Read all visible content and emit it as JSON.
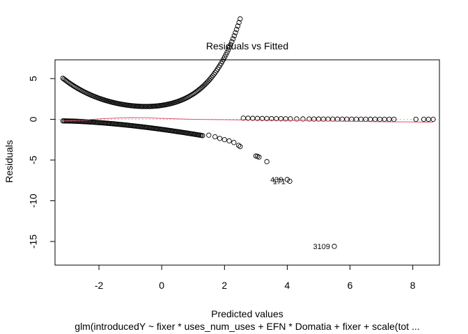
{
  "chart_data": {
    "type": "scatter",
    "title": "Residuals vs Fitted",
    "xlabel": "Predicted values",
    "ylabel": "Residuals",
    "subtitle": "glm(introducedY ~ fixer * uses_num_uses + EFN * Domatia + fixer + scale(tot ...",
    "xlim": [
      -3.4,
      8.85
    ],
    "ylim": [
      -17.9,
      7.3
    ],
    "x_ticks": [
      -2,
      0,
      2,
      4,
      6,
      8
    ],
    "y_ticks": [
      5,
      0,
      -5,
      -10,
      -15
    ],
    "reference_line_y": 0,
    "colors": {
      "points": "#000000",
      "smooth": "#DF536B",
      "reference": "#bbbbbb"
    },
    "upper_branch": {
      "x_start": -3.15,
      "x_end": 2.5,
      "dense_count": 150,
      "sparse_x": [
        2.6,
        2.75,
        2.9,
        3.05,
        3.2,
        3.35,
        3.5,
        3.65,
        3.8,
        3.95,
        4.1,
        4.3,
        4.5,
        4.7,
        4.85,
        5.0,
        5.15,
        5.3,
        5.45,
        5.6,
        5.75,
        5.9,
        6.05,
        6.2,
        6.35,
        6.5,
        6.65,
        6.8,
        6.95,
        7.1,
        7.25,
        7.4,
        8.1,
        8.35,
        8.5,
        8.65
      ]
    },
    "lower_branch": {
      "x_start": -3.15,
      "x_end": 1.3,
      "dense_count": 120,
      "sparse_points": [
        {
          "x": 1.5,
          "y": -1.95
        },
        {
          "x": 1.7,
          "y": -2.15
        },
        {
          "x": 1.85,
          "y": -2.35
        },
        {
          "x": 2.0,
          "y": -2.5
        },
        {
          "x": 2.15,
          "y": -2.65
        },
        {
          "x": 2.3,
          "y": -2.85
        },
        {
          "x": 2.45,
          "y": -3.2
        },
        {
          "x": 2.5,
          "y": -3.35
        },
        {
          "x": 3.0,
          "y": -4.5
        },
        {
          "x": 3.05,
          "y": -4.55
        },
        {
          "x": 3.1,
          "y": -4.65
        },
        {
          "x": 3.35,
          "y": -5.2
        }
      ]
    },
    "outliers": [
      {
        "x": 4.0,
        "y": -7.4,
        "label": "439"
      },
      {
        "x": 4.08,
        "y": -7.6,
        "label": "171"
      },
      {
        "x": 5.5,
        "y": -15.6,
        "label": "3109"
      }
    ],
    "smooth_line": [
      {
        "x": -3.1,
        "y": -0.2
      },
      {
        "x": -2.5,
        "y": -0.1
      },
      {
        "x": -2.0,
        "y": 0.05
      },
      {
        "x": -1.5,
        "y": 0.15
      },
      {
        "x": -1.0,
        "y": 0.2
      },
      {
        "x": -0.5,
        "y": 0.18
      },
      {
        "x": 0.0,
        "y": 0.12
      },
      {
        "x": 0.5,
        "y": 0.05
      },
      {
        "x": 1.0,
        "y": 0.0
      },
      {
        "x": 2.0,
        "y": -0.05
      },
      {
        "x": 3.0,
        "y": -0.1
      },
      {
        "x": 4.0,
        "y": -0.15
      },
      {
        "x": 5.0,
        "y": -0.2
      },
      {
        "x": 6.0,
        "y": -0.25
      },
      {
        "x": 7.0,
        "y": -0.3
      },
      {
        "x": 8.0,
        "y": -0.32
      },
      {
        "x": 8.65,
        "y": -0.35
      }
    ]
  }
}
